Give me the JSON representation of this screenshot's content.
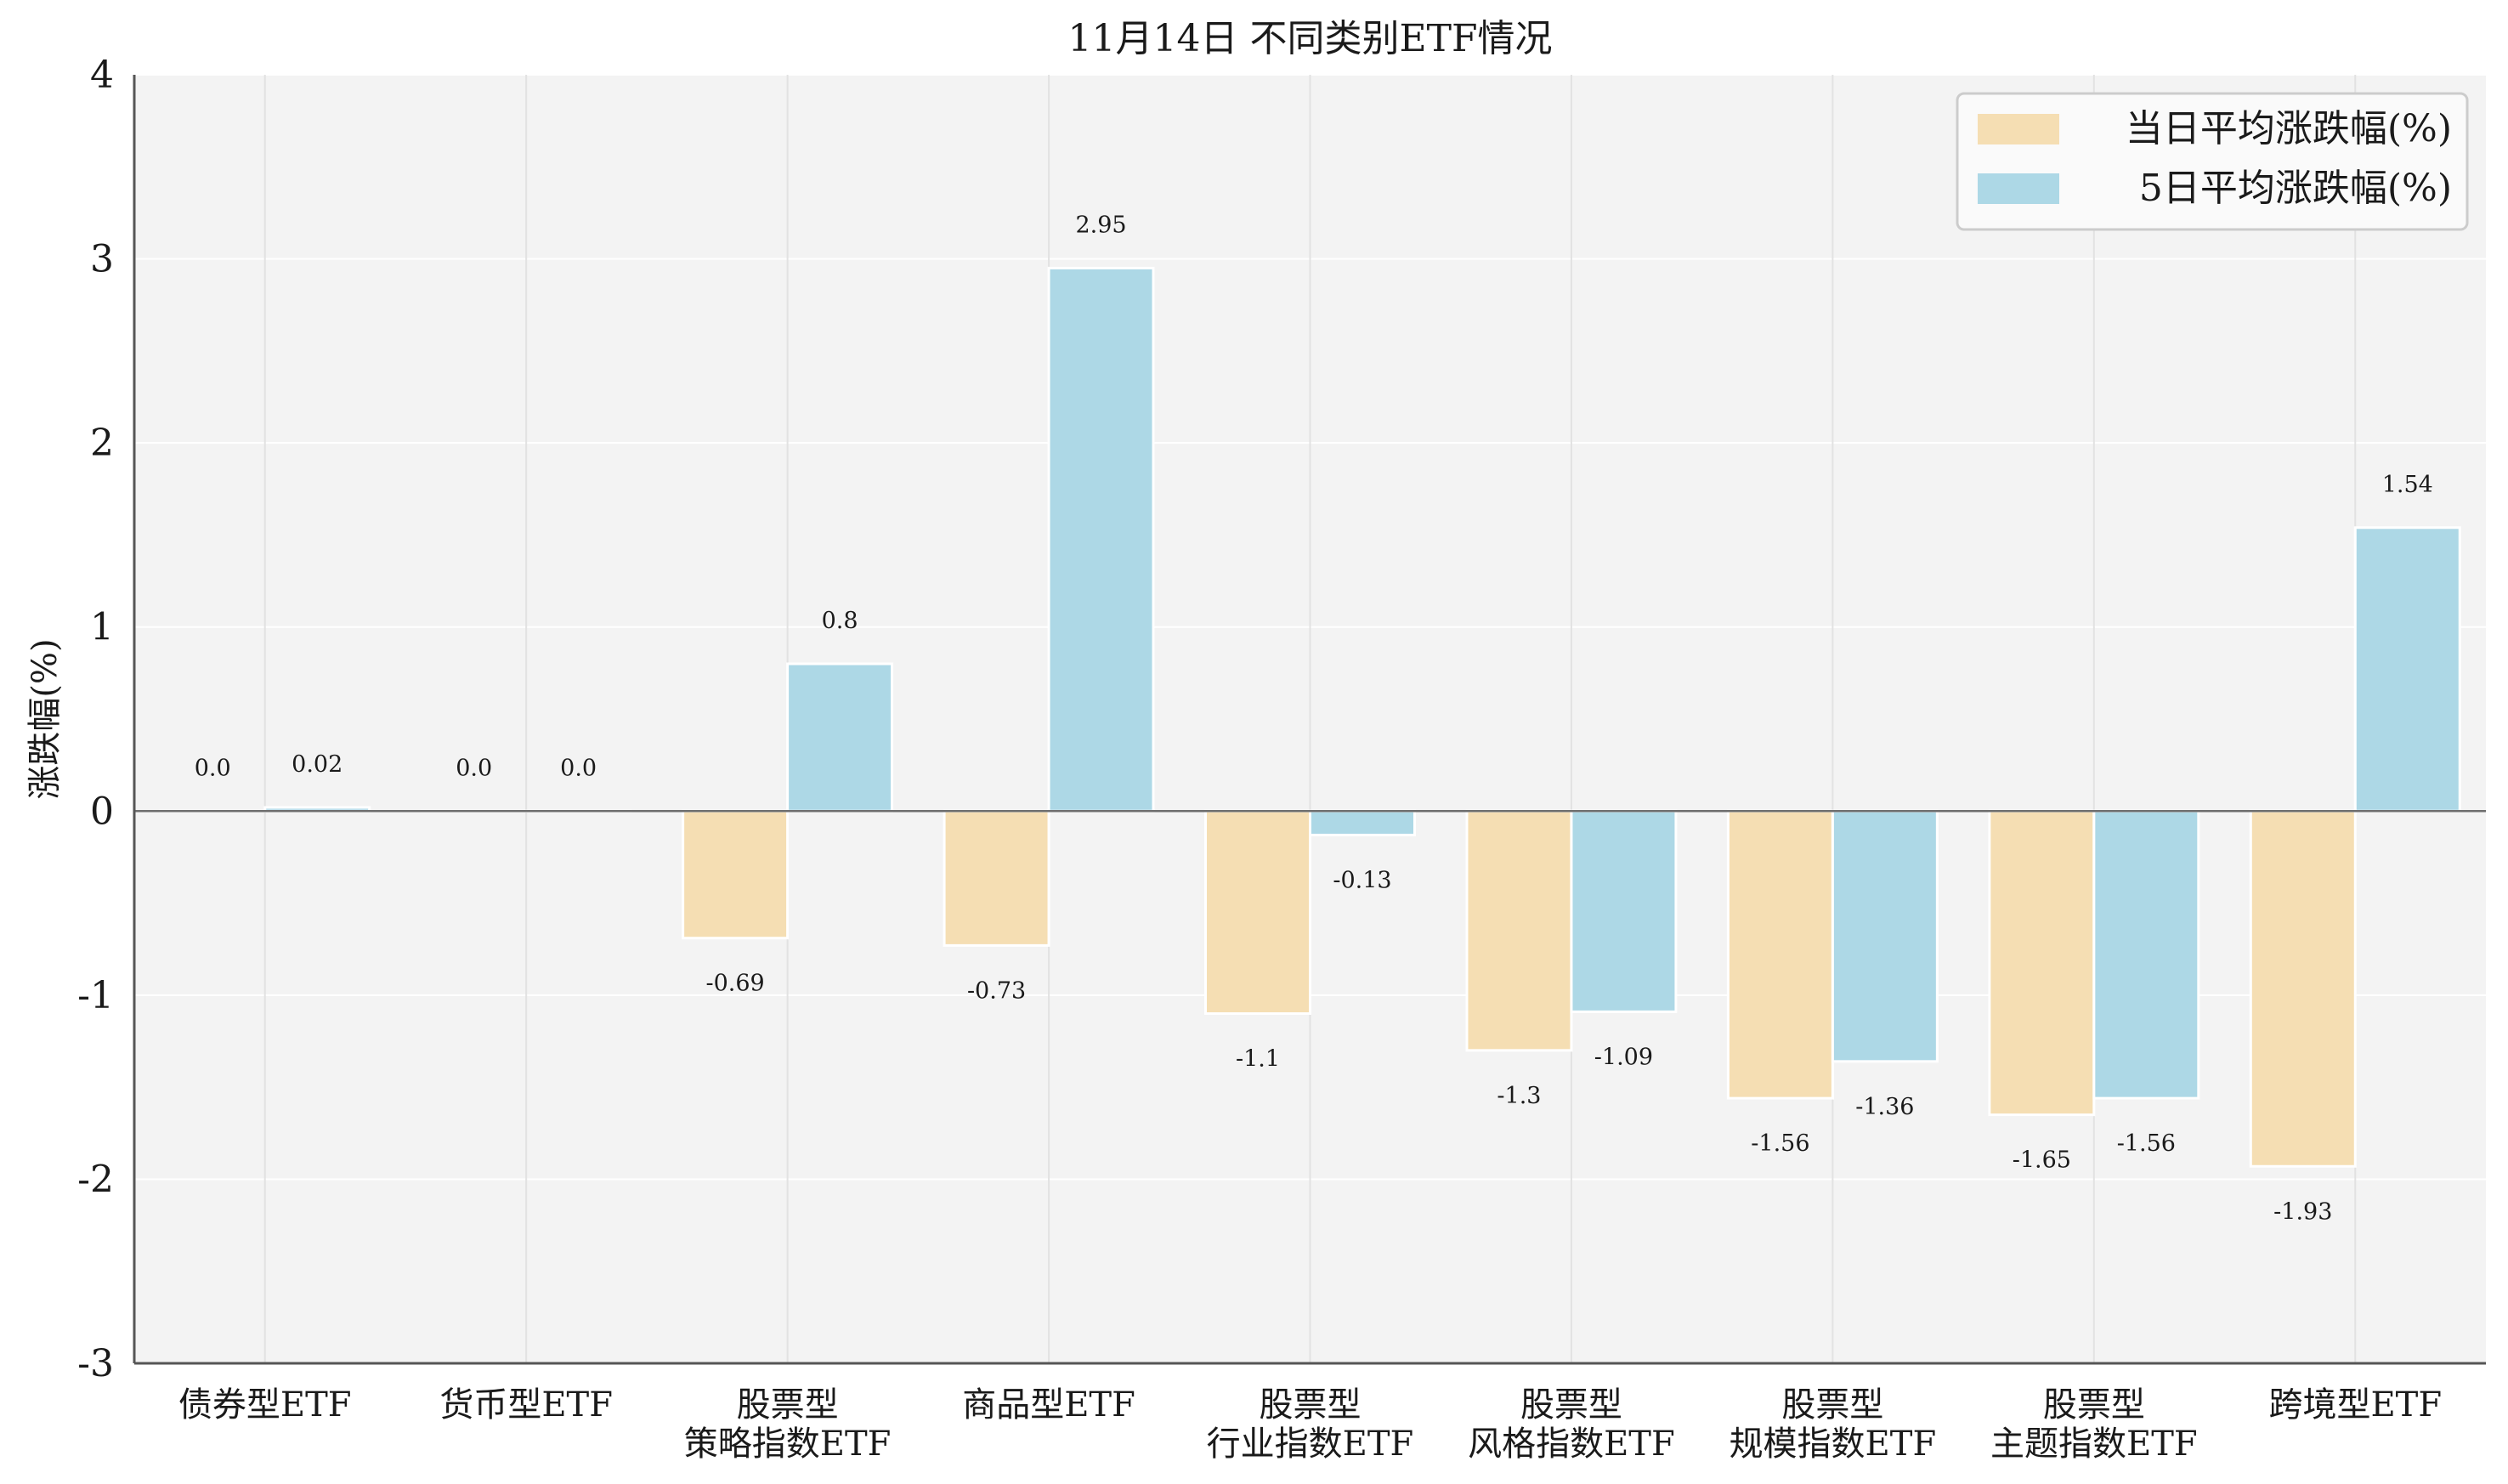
{
  "chart_data": {
    "type": "bar",
    "title": "11月14日 不同类别ETF情况",
    "ylabel": "涨跌幅(%)",
    "xlabel": "",
    "ylim": [
      -3,
      4
    ],
    "yticks": [
      -3,
      -2,
      -1,
      0,
      1,
      2,
      3,
      4
    ],
    "categories": [
      [
        "债券型ETF"
      ],
      [
        "货币型ETF"
      ],
      [
        "股票型",
        "策略指数ETF"
      ],
      [
        "商品型ETF"
      ],
      [
        "股票型",
        "行业指数ETF"
      ],
      [
        "股票型",
        "风格指数ETF"
      ],
      [
        "股票型",
        "规模指数ETF"
      ],
      [
        "股票型",
        "主题指数ETF"
      ],
      [
        "跨境型ETF"
      ]
    ],
    "series": [
      {
        "name": "当日平均涨跌幅(%)",
        "color": "#f5deb3",
        "values": [
          0.0,
          0.0,
          -0.69,
          -0.73,
          -1.1,
          -1.3,
          -1.56,
          -1.65,
          -1.93
        ],
        "labels": [
          "0.0",
          "0.0",
          "-0.69",
          "-0.73",
          "-1.1",
          "-1.3",
          "-1.56",
          "-1.65",
          "-1.93"
        ]
      },
      {
        "name": "5日平均涨跌幅(%)",
        "color": "#add8e6",
        "values": [
          0.02,
          0.0,
          0.8,
          2.95,
          -0.13,
          -1.09,
          -1.36,
          -1.56,
          1.54
        ],
        "labels": [
          "0.02",
          "0.0",
          "0.8",
          "2.95",
          "-0.13",
          "-1.09",
          "-1.36",
          "-1.56",
          "1.54"
        ]
      }
    ],
    "grid": true,
    "legend_position": "top-right"
  }
}
